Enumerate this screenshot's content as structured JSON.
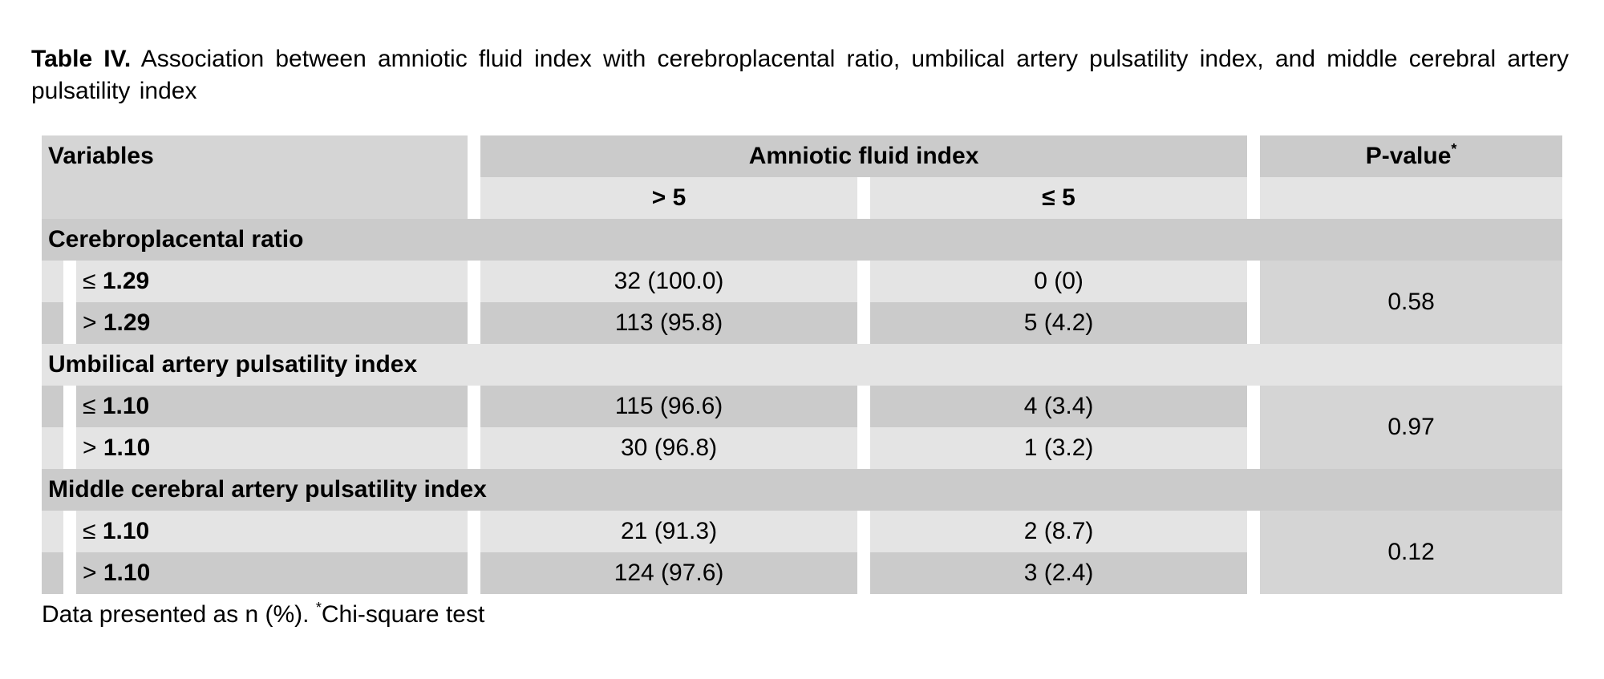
{
  "caption": {
    "label": "Table IV.",
    "text": "Association between amniotic fluid index with cerebroplacental ratio, umbilical artery pulsatility index, and middle cerebral artery pulsatility index"
  },
  "table": {
    "header": {
      "variables": "Variables",
      "group": "Amniotic fluid index",
      "col1": "> 5",
      "col2": "≤ 5",
      "pvalue": "P-value",
      "pvalue_mark": "*"
    },
    "sections": [
      {
        "title": "Cerebroplacental ratio",
        "pvalue": "0.58",
        "rows": [
          {
            "cmp": "≤",
            "threshold": "1.29",
            "col1": "32 (100.0)",
            "col2": "0 (0)"
          },
          {
            "cmp": ">",
            "threshold": "1.29",
            "col1": "113 (95.8)",
            "col2": "5 (4.2)"
          }
        ]
      },
      {
        "title": "Umbilical artery pulsatility index",
        "pvalue": "0.97",
        "rows": [
          {
            "cmp": "≤",
            "threshold": "1.10",
            "col1": "115 (96.6)",
            "col2": "4 (3.4)"
          },
          {
            "cmp": ">",
            "threshold": "1.10",
            "col1": "30 (96.8)",
            "col2": "1 (3.2)"
          }
        ]
      },
      {
        "title": "Middle cerebral artery pulsatility index",
        "pvalue": "0.12",
        "rows": [
          {
            "cmp": "≤",
            "threshold": "1.10",
            "col1": "21 (91.3)",
            "col2": "2 (8.7)"
          },
          {
            "cmp": ">",
            "threshold": "1.10",
            "col1": "124 (97.6)",
            "col2": "3 (2.4)"
          }
        ]
      }
    ]
  },
  "footnote": {
    "text": "Data presented as n (%).",
    "mark": "*",
    "test": "Chi-square test"
  }
}
